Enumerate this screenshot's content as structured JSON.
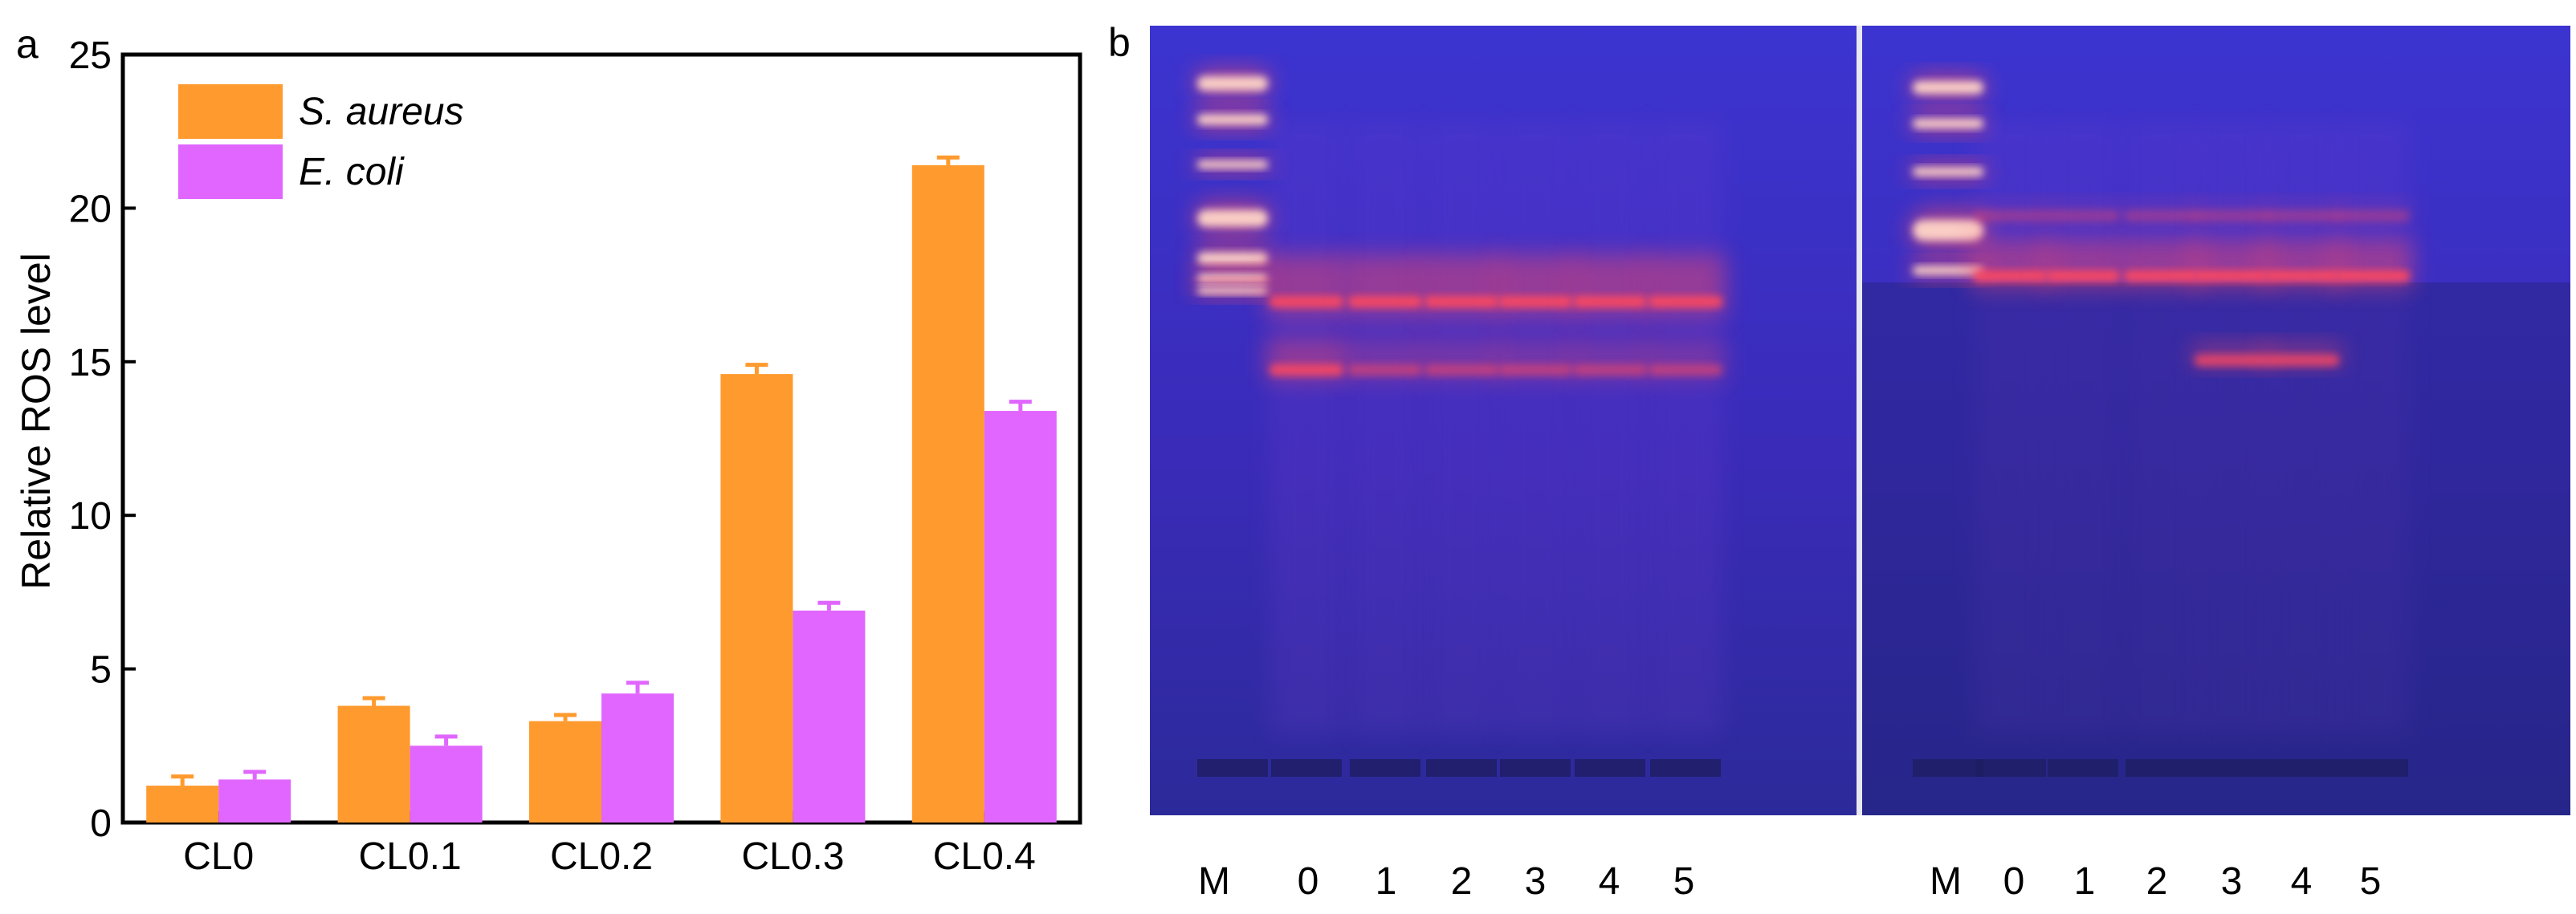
{
  "panel_a": {
    "label": "a"
  },
  "panel_b": {
    "label": "b",
    "left_gel": {
      "lanes": [
        "M",
        "0",
        "1",
        "2",
        "3",
        "4",
        "5"
      ]
    },
    "right_gel": {
      "lanes": [
        "M",
        "0",
        "1",
        "2",
        "3",
        "4",
        "5"
      ]
    },
    "colors": {
      "background": "#3a2fc4",
      "band": "#ff4a5e",
      "band_core": "#ffd6c8"
    }
  },
  "chart_data": {
    "type": "bar",
    "categories": [
      "CL0",
      "CL0.1",
      "CL0.2",
      "CL0.3",
      "CL0.4"
    ],
    "series": [
      {
        "name": "S. aureus",
        "color": "#ff9a2e",
        "values": [
          1.2,
          3.8,
          3.3,
          14.6,
          21.4
        ],
        "errors": [
          0.3,
          0.25,
          0.2,
          0.3,
          0.25
        ]
      },
      {
        "name": "E. coli",
        "color": "#e066ff",
        "values": [
          1.4,
          2.5,
          4.2,
          6.9,
          13.4
        ],
        "errors": [
          0.25,
          0.3,
          0.35,
          0.25,
          0.3
        ]
      }
    ],
    "ylabel": "Relative ROS level",
    "xlabel": "",
    "ylim": [
      0,
      25
    ],
    "yticks": [
      0,
      5,
      10,
      15,
      20,
      25
    ],
    "legend": "top-left",
    "grid": false
  }
}
